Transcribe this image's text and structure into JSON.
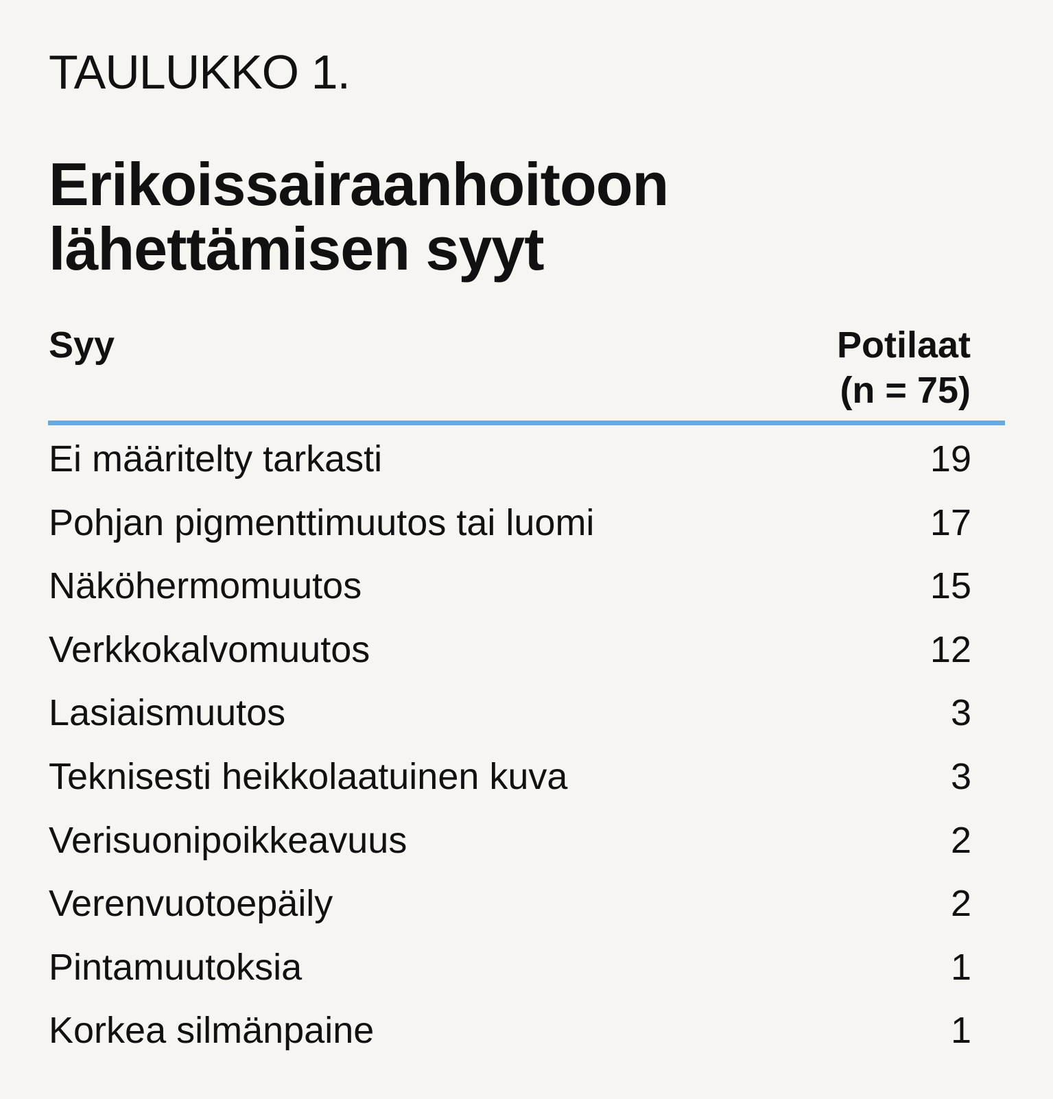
{
  "table_label": "TAULUKKO 1.",
  "title_lines": [
    "Erikoissairaanhoitoon",
    "lähettämisen syyt"
  ],
  "columns": {
    "reason": "Syy",
    "patients_line1": "Potilaat",
    "patients_line2": "(n = 75)"
  },
  "rows": [
    {
      "reason": "Ei määritelty tarkasti",
      "count": "19"
    },
    {
      "reason": "Pohjan pigmenttimuutos tai luomi",
      "count": "17"
    },
    {
      "reason": "Näköhermomuutos",
      "count": "15"
    },
    {
      "reason": "Verkkokalvomuutos",
      "count": "12"
    },
    {
      "reason": "Lasiaismuutos",
      "count": "3"
    },
    {
      "reason": "Teknisesti heikkolaatuinen kuva",
      "count": "3"
    },
    {
      "reason": "Verisuonipoikkeavuus",
      "count": "2"
    },
    {
      "reason": "Verenvuotoepäily",
      "count": "2"
    },
    {
      "reason": "Pintamuutoksia",
      "count": "1"
    },
    {
      "reason": "Korkea silmänpaine",
      "count": "1"
    }
  ],
  "colors": {
    "background": "#f7f5f2",
    "text": "#111111",
    "header_rule": "#6aa9dd"
  }
}
